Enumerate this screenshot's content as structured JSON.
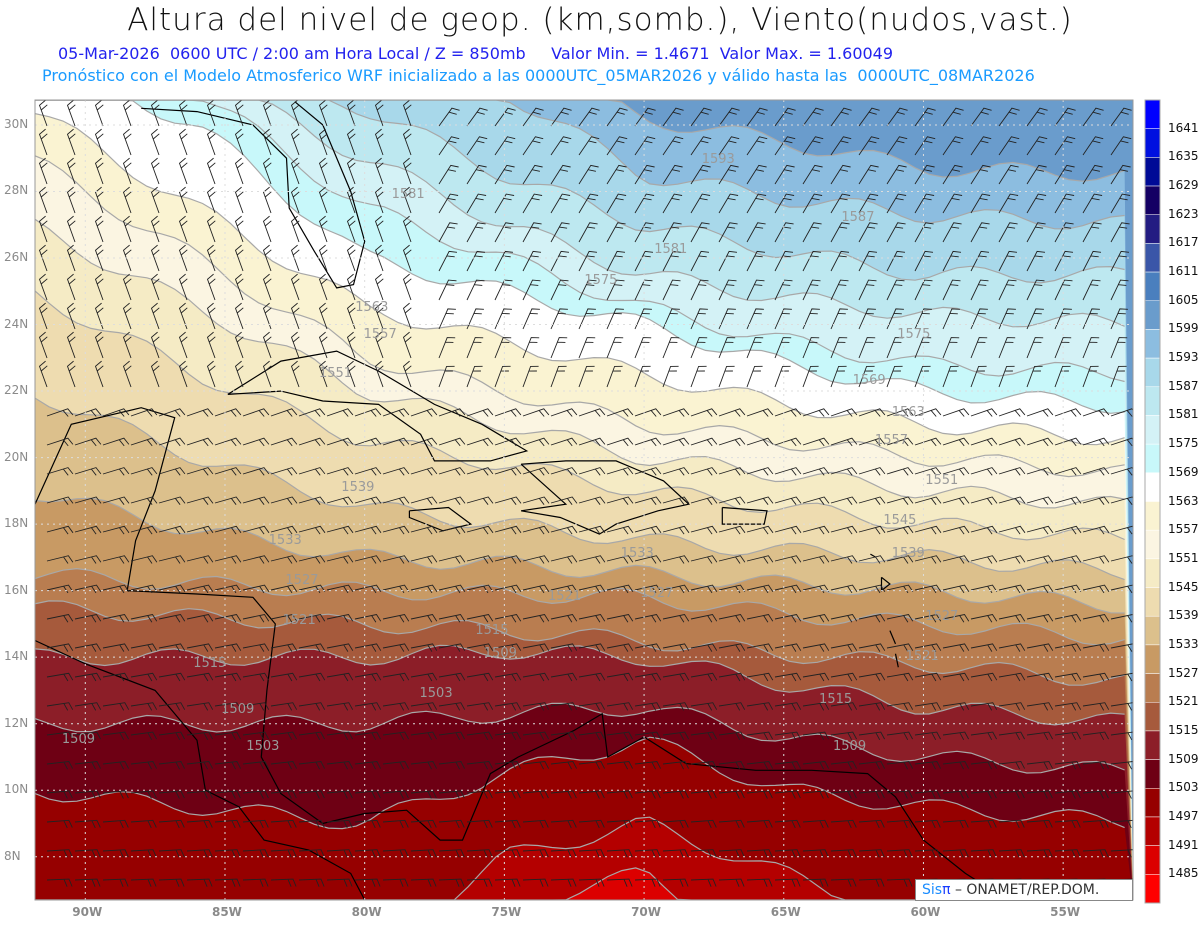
{
  "header": {
    "title": "Altura del nivel de geop. (km,somb.), Viento(nudos,vast.)",
    "line1": "05-Mar-2026  0600 UTC / 2:00 am Hora Local / Z = 850mb     Valor Min. = 1.4671  Valor Max. = 1.60049",
    "line2": "Pronóstico con el Modelo Atmosferico WRF inicializado a las 0000UTC_05MAR2026 y válido hasta las  0000UTC_08MAR2026"
  },
  "map": {
    "lat_labels": [
      "30N",
      "28N",
      "26N",
      "24N",
      "22N",
      "20N",
      "18N",
      "16N",
      "14N",
      "12N",
      "10N",
      "8N"
    ],
    "lat_values": [
      30,
      28,
      26,
      24,
      22,
      20,
      18,
      16,
      14,
      12,
      10,
      8
    ],
    "lon_labels": [
      "90W",
      "85W",
      "80W",
      "75W",
      "70W",
      "65W",
      "60W",
      "55W"
    ],
    "lon_values": [
      -90,
      -85,
      -80,
      -75,
      -70,
      -65,
      -60,
      -55
    ],
    "contour_labels": [
      {
        "text": "1593",
        "lon": -67.4,
        "lat": 28.95
      },
      {
        "text": "1587",
        "lon": -62.4,
        "lat": 27.2
      },
      {
        "text": "1581",
        "lon": -78.5,
        "lat": 27.9
      },
      {
        "text": "1581",
        "lon": -69.1,
        "lat": 26.25
      },
      {
        "text": "1575",
        "lon": -71.6,
        "lat": 25.3
      },
      {
        "text": "1575",
        "lon": -60.4,
        "lat": 23.7
      },
      {
        "text": "1569",
        "lon": -62.0,
        "lat": 22.3
      },
      {
        "text": "1563",
        "lon": -79.8,
        "lat": 24.5
      },
      {
        "text": "1563",
        "lon": -60.6,
        "lat": 21.35
      },
      {
        "text": "1557",
        "lon": -79.5,
        "lat": 23.7
      },
      {
        "text": "1557",
        "lon": -61.2,
        "lat": 20.5
      },
      {
        "text": "1551",
        "lon": -81.1,
        "lat": 22.5
      },
      {
        "text": "1551",
        "lon": -59.4,
        "lat": 19.3
      },
      {
        "text": "1545",
        "lon": -60.9,
        "lat": 18.1
      },
      {
        "text": "1539",
        "lon": -80.3,
        "lat": 19.1
      },
      {
        "text": "1539",
        "lon": -60.6,
        "lat": 17.1
      },
      {
        "text": "1533",
        "lon": -82.9,
        "lat": 17.5
      },
      {
        "text": "1533",
        "lon": -70.3,
        "lat": 17.1
      },
      {
        "text": "1527",
        "lon": -82.3,
        "lat": 16.3
      },
      {
        "text": "1527",
        "lon": -69.6,
        "lat": 15.9
      },
      {
        "text": "1527",
        "lon": -59.4,
        "lat": 15.2
      },
      {
        "text": "1521",
        "lon": -82.4,
        "lat": 15.1
      },
      {
        "text": "1521",
        "lon": -72.9,
        "lat": 15.8
      },
      {
        "text": "1521",
        "lon": -60.1,
        "lat": 14.0
      },
      {
        "text": "1515",
        "lon": -75.5,
        "lat": 14.8
      },
      {
        "text": "1515",
        "lon": -85.6,
        "lat": 13.8
      },
      {
        "text": "1515",
        "lon": -63.2,
        "lat": 12.7
      },
      {
        "text": "1509",
        "lon": -75.2,
        "lat": 14.1
      },
      {
        "text": "1509",
        "lon": -84.6,
        "lat": 12.4
      },
      {
        "text": "1509",
        "lon": -62.7,
        "lat": 11.3
      },
      {
        "text": "1509",
        "lon": -90.3,
        "lat": 11.5
      },
      {
        "text": "1503",
        "lon": -77.5,
        "lat": 12.9
      },
      {
        "text": "1503",
        "lon": -83.7,
        "lat": 11.3
      }
    ]
  },
  "colorbar": {
    "labels": [
      "1641",
      "1635",
      "1629",
      "1623",
      "1617",
      "1611",
      "1605",
      "1599",
      "1593",
      "1587",
      "1581",
      "1575",
      "1569",
      "1563",
      "1557",
      "1551",
      "1545",
      "1539",
      "1533",
      "1527",
      "1521",
      "1515",
      "1509",
      "1503",
      "1497",
      "1491",
      "1485"
    ],
    "colors": [
      "#0000ff",
      "#0010e0",
      "#000a96",
      "#140064",
      "#231c82",
      "#3a56a8",
      "#4a7fbe",
      "#6a9ccc",
      "#8cbde0",
      "#a8d8ea",
      "#bde8f0",
      "#d4f2f6",
      "#c8f8fa",
      "#ffffff",
      "#faf3d2",
      "#fbf5e2",
      "#f5ebc5",
      "#eedcb0",
      "#dcc08c",
      "#c89a64",
      "#b97d50",
      "#a65a3c",
      "#8c1e28",
      "#6e0014",
      "#960000",
      "#b40000",
      "#dc0000",
      "#ff0000"
    ]
  },
  "credit": {
    "sis": "Sis",
    "pi": "π",
    "rest": " – ONAMET/REP.DOM."
  }
}
